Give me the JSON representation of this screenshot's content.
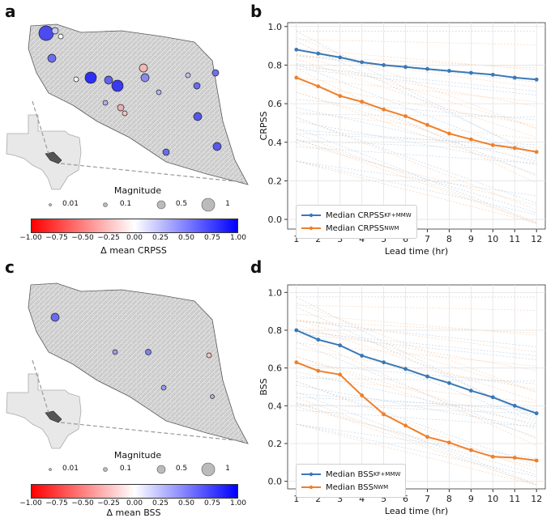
{
  "panels": {
    "a": {
      "letter": "a",
      "magnitude_title": "Magnitude",
      "mag_labels": [
        "0.01",
        "0.1",
        "0.5",
        "1"
      ],
      "colorbar_label": "Δ mean CRPSS",
      "colorbar_ticks": [
        "−1.00",
        "−0.75",
        "−0.50",
        "−0.25",
        "0.00",
        "0.25",
        "0.50",
        "0.75",
        "1.00"
      ]
    },
    "c": {
      "letter": "c",
      "magnitude_title": "Magnitude",
      "mag_labels": [
        "0.01",
        "0.1",
        "0.5",
        "1"
      ],
      "colorbar_label": "Δ mean BSS",
      "colorbar_ticks": [
        "−1.00",
        "−0.75",
        "−0.50",
        "−0.25",
        "0.00",
        "0.25",
        "0.50",
        "0.75",
        "1.00"
      ]
    },
    "b": {
      "letter": "b"
    },
    "d": {
      "letter": "d"
    }
  },
  "colors": {
    "blue": "#3a78b5",
    "orange": "#f07f2a",
    "cb_neg": "#ff0000",
    "cb_mid": "#ffffff",
    "cb_pos": "#0000ff"
  },
  "chart_data": [
    {
      "id": "b",
      "type": "line",
      "title": "",
      "xlabel": "Lead time (hr)",
      "ylabel": "CRPSS",
      "x": [
        1,
        2,
        3,
        4,
        5,
        6,
        7,
        8,
        9,
        10,
        11,
        12
      ],
      "xlim": [
        0.6,
        12.4
      ],
      "ylim": [
        -0.05,
        1.02
      ],
      "yticks": [
        0.0,
        0.2,
        0.4,
        0.6,
        0.8,
        1.0
      ],
      "ytick_labels": [
        "0.0",
        "0.2",
        "0.4",
        "0.6",
        "0.8",
        "1.0"
      ],
      "grid": true,
      "legend_position": "bottom-left",
      "series": [
        {
          "name": "Median CRPSS",
          "subscript": "KF+MMW",
          "color": "#3a78b5",
          "values": [
            0.88,
            0.86,
            0.84,
            0.815,
            0.8,
            0.79,
            0.78,
            0.77,
            0.76,
            0.75,
            0.735,
            0.725
          ]
        },
        {
          "name": "Median CRPSS",
          "subscript": "NWM",
          "color": "#f07f2a",
          "values": [
            0.735,
            0.69,
            0.64,
            0.61,
            0.57,
            0.535,
            0.49,
            0.445,
            0.415,
            0.385,
            0.37,
            0.35
          ]
        }
      ]
    },
    {
      "id": "d",
      "type": "line",
      "title": "",
      "xlabel": "Lead time (hr)",
      "ylabel": "BSS",
      "x": [
        1,
        2,
        3,
        4,
        5,
        6,
        7,
        8,
        9,
        10,
        11,
        12
      ],
      "xlim": [
        0.6,
        12.4
      ],
      "ylim": [
        -0.04,
        1.04
      ],
      "yticks": [
        0.0,
        0.2,
        0.4,
        0.6,
        0.8,
        1.0
      ],
      "ytick_labels": [
        "0.0",
        "0.2",
        "0.4",
        "0.6",
        "0.8",
        "1.0"
      ],
      "grid": true,
      "legend_position": "bottom-left",
      "series": [
        {
          "name": "Median BSS",
          "subscript": "KF+MMW",
          "color": "#3a78b5",
          "values": [
            0.8,
            0.75,
            0.72,
            0.665,
            0.63,
            0.595,
            0.555,
            0.52,
            0.48,
            0.445,
            0.4,
            0.36
          ]
        },
        {
          "name": "Median BSS",
          "subscript": "NWM",
          "color": "#f07f2a",
          "values": [
            0.63,
            0.585,
            0.565,
            0.455,
            0.355,
            0.295,
            0.235,
            0.205,
            0.165,
            0.13,
            0.125,
            0.11
          ]
        }
      ]
    }
  ]
}
